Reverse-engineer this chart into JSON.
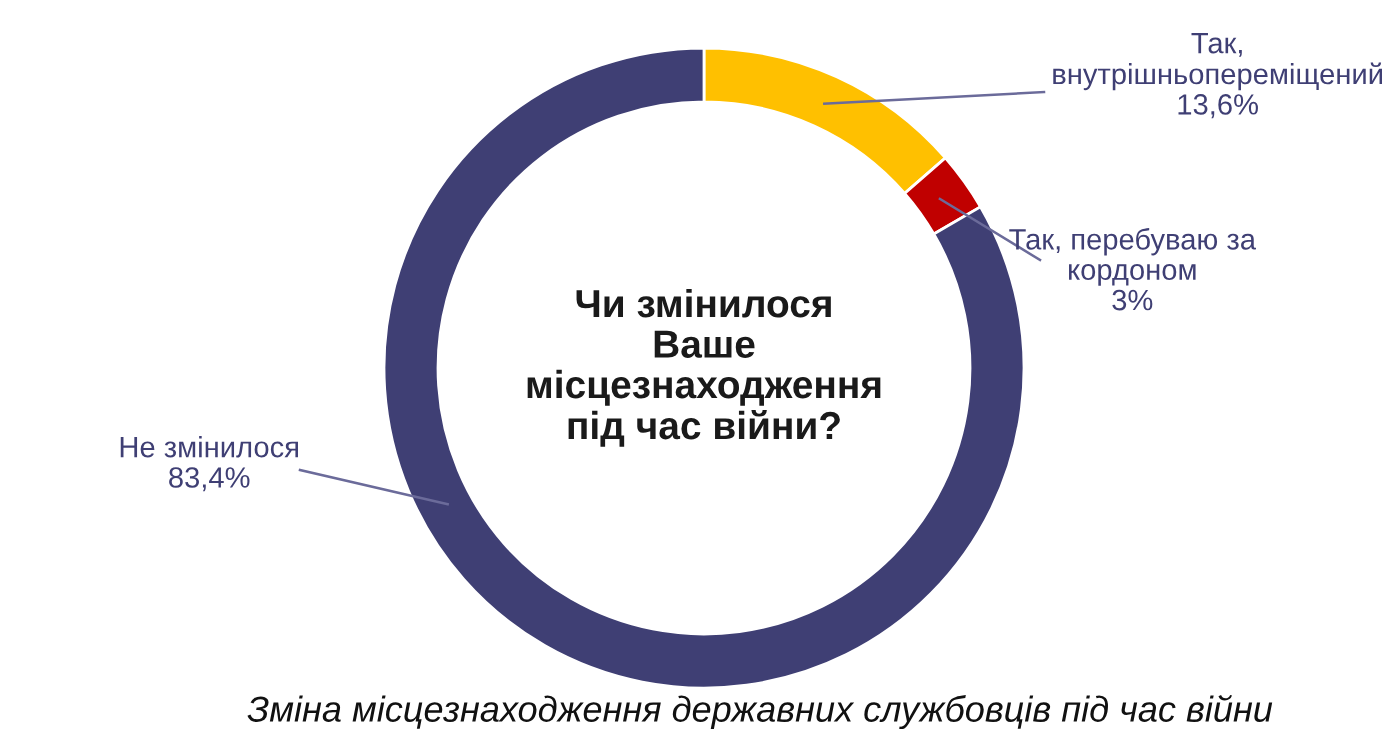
{
  "chart_data": {
    "type": "donut",
    "title": "Чи змінилося\nВаше\nмісцезнаходження\nпід час війни?",
    "categories": [
      "Так,\nвнутрішньопереміщений",
      "Так, перебуваю за\nкордоном",
      "Не змінилося"
    ],
    "values": [
      13.6,
      3,
      83.4
    ],
    "colors": [
      "#ffc000",
      "#c00000",
      "#3f3f74"
    ],
    "value_labels": [
      "13,6%",
      "3%",
      "83,4%"
    ],
    "annotations": [
      "Зміна місцезнаходження державних службовців під час війни"
    ],
    "legend": false
  }
}
